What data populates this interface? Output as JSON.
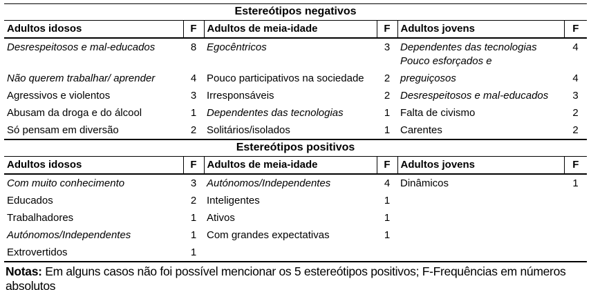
{
  "sections": [
    {
      "title": "Estereótipos negativos",
      "headers": [
        "Adultos idosos",
        "F",
        "Adultos de meia-idade",
        "F",
        "Adultos jovens",
        "F"
      ],
      "rows": [
        {
          "c1": "Desrespeitosos e mal-educados",
          "f1": "8",
          "c2": "Egocêntricos",
          "f2": "3",
          "c3": "Dependentes das tecnologias",
          "c3b": "Pouco esforçados e",
          "f3": "4"
        },
        {
          "c1": "Não querem trabalhar/ aprender",
          "f1": "4",
          "c2": "Pouco participativos na sociedade",
          "f2": "2",
          "c3": "preguiçosos",
          "f3": "4"
        },
        {
          "c1": "Agressivos e violentos",
          "f1": "3",
          "c2": "Irresponsáveis",
          "f2": "2",
          "c3": "Desrespeitosos e mal-educados",
          "f3": "3"
        },
        {
          "c1": "Abusam da droga e do álcool",
          "f1": "1",
          "c2": "Dependentes das tecnologias",
          "f2": "1",
          "c3": "Falta de civismo",
          "f3": "2"
        },
        {
          "c1": "Só pensam em diversão",
          "f1": "2",
          "c2": "Solitários/isolados",
          "f2": "1",
          "c3": "Carentes",
          "f3": "2"
        }
      ]
    },
    {
      "title": "Estereótipos positivos",
      "headers": [
        "Adultos idosos",
        "F",
        "Adultos de meia-idade",
        "F",
        "Adultos jovens",
        "F"
      ],
      "rows": [
        {
          "c1": "Com muito conhecimento",
          "f1": "3",
          "c2": "Autónomos/Independentes",
          "f2": "4",
          "c3": "Dinâmicos",
          "f3": "1"
        },
        {
          "c1": "Educados",
          "f1": "2",
          "c2": "Inteligentes",
          "f2": "1"
        },
        {
          "c1": "Trabalhadores",
          "f1": "1",
          "c2": "Ativos",
          "f2": "1"
        },
        {
          "c1": "Autónomos/Independentes",
          "f1": "1",
          "c2": "Com grandes expectativas",
          "f2": "1"
        },
        {
          "c1": "Extrovertidos",
          "f1": "1"
        }
      ]
    }
  ],
  "notes": {
    "label": "Notas:",
    "text": " Em alguns casos não foi possível mencionar os 5 estereótipos positivos; F-Frequências em números absolutos"
  }
}
